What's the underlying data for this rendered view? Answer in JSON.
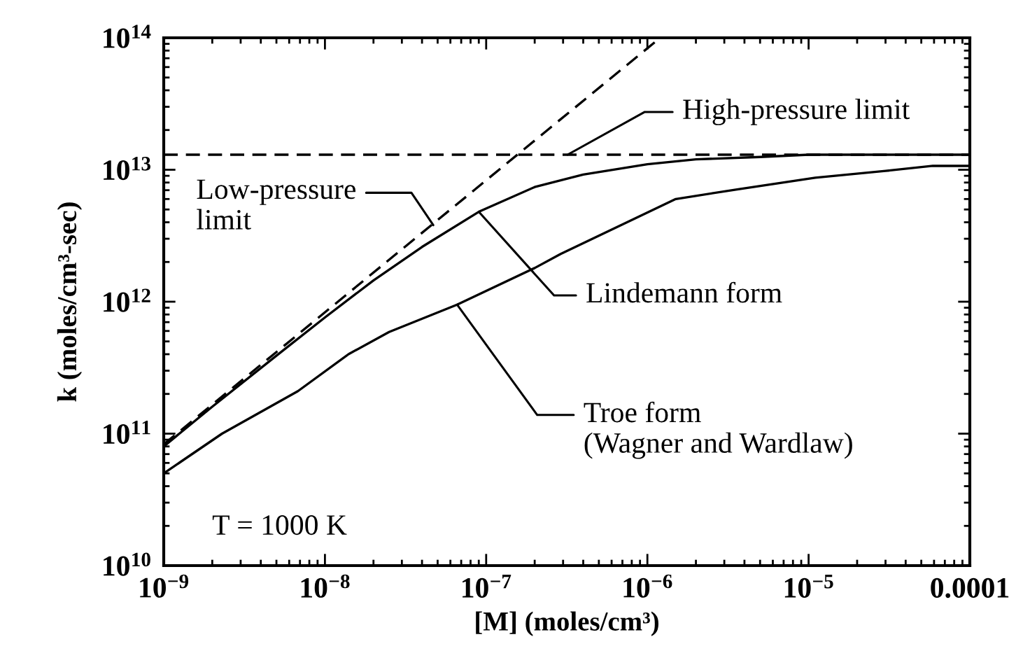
{
  "chart_data": {
    "type": "line",
    "xlabel": "[M] (moles/cm³)",
    "ylabel": "k (moles/cm³-sec)",
    "log": "xy",
    "xlim": [
      1e-09,
      0.0001
    ],
    "ylim": [
      10000000000.0,
      100000000000000.0
    ],
    "xticks": [
      {
        "value": 1e-09,
        "label": "10$^{−9}$"
      },
      {
        "value": 1e-08,
        "label": "10$^{−8}$"
      },
      {
        "value": 1e-07,
        "label": "10$^{−7}$"
      },
      {
        "value": 1e-06,
        "label": "10$^{−6}$"
      },
      {
        "value": 1e-05,
        "label": "10$^{−5}$"
      },
      0.0001
    ],
    "yticks": [
      {
        "value": 10000000000.0,
        "label": "10$^{10}$"
      },
      {
        "value": 100000000000.0,
        "label": "10$^{11}$"
      },
      {
        "value": 1000000000000.0,
        "label": "10$^{12}$"
      },
      {
        "value": 10000000000000.0,
        "label": "10$^{13}$"
      },
      {
        "value": 100000000000000.0,
        "label": "10$^{14}$"
      }
    ],
    "series": [
      {
        "color": "#000000",
        "line_style": "dashed",
        "x": [
          1e-09,
          1.2e-06
        ],
        "values": [
          83000000000.0,
          100000000000000.0
        ]
      },
      {
        "color": "#000000",
        "line_style": "dashed",
        "x": [
          1e-09,
          0.0001
        ],
        "values": [
          13000000000000.0,
          13000000000000.0
        ]
      },
      {
        "color": "#000000",
        "line_style": "solid",
        "x": [
          1e-09,
          2e-09,
          5e-09,
          1e-08,
          2e-08,
          4e-08,
          9e-08,
          2e-07,
          4e-07,
          1e-06,
          2e-06,
          5e-06,
          1e-05,
          0.0001
        ],
        "values": [
          80000000000.0,
          160000000000.0,
          390000000000.0,
          760000000000.0,
          1450000000000.0,
          2600000000000.0,
          4800000000000.0,
          7400000000000.0,
          9200000000000.0,
          11000000000000.0,
          12000000000000.0,
          12500000000000.0,
          13000000000000.0,
          13000000000000.0
        ]
      },
      {
        "color": "#000000",
        "line_style": "solid",
        "x": [
          1e-09,
          2.3e-09,
          6.8e-09,
          1.4e-08,
          2.5e-08,
          6.6e-08,
          2e-07,
          2.9e-07,
          7.8e-07,
          1.5e-06,
          3.6e-06,
          1.1e-05,
          3e-05,
          5.9e-05,
          0.0001
        ],
        "values": [
          50000000000.0,
          100000000000.0,
          210000000000.0,
          400000000000.0,
          590000000000.0,
          950000000000.0,
          1800000000000.0,
          2300000000000.0,
          4100000000000.0,
          6000000000000.0,
          7100000000000.0,
          8700000000000.0,
          9800000000000.0,
          10700000000000.0,
          10700000000000.0
        ]
      }
    ],
    "annotations": [
      {
        "text": "High-pressure limit",
        "x": 3.2e-07,
        "y": 13000000000000.0
      },
      {
        "text": "Low-pressure\nlimit",
        "x": 4.7e-08,
        "y": 3800000000000.0
      },
      {
        "text": "Lindemann form",
        "x": 9e-08,
        "y": 4800000000000.0
      },
      {
        "text": "Troe form\n(Wagner and Wardlaw)",
        "x": 6.6e-08,
        "y": 950000000000.0
      },
      "T = 1000 K"
    ]
  }
}
